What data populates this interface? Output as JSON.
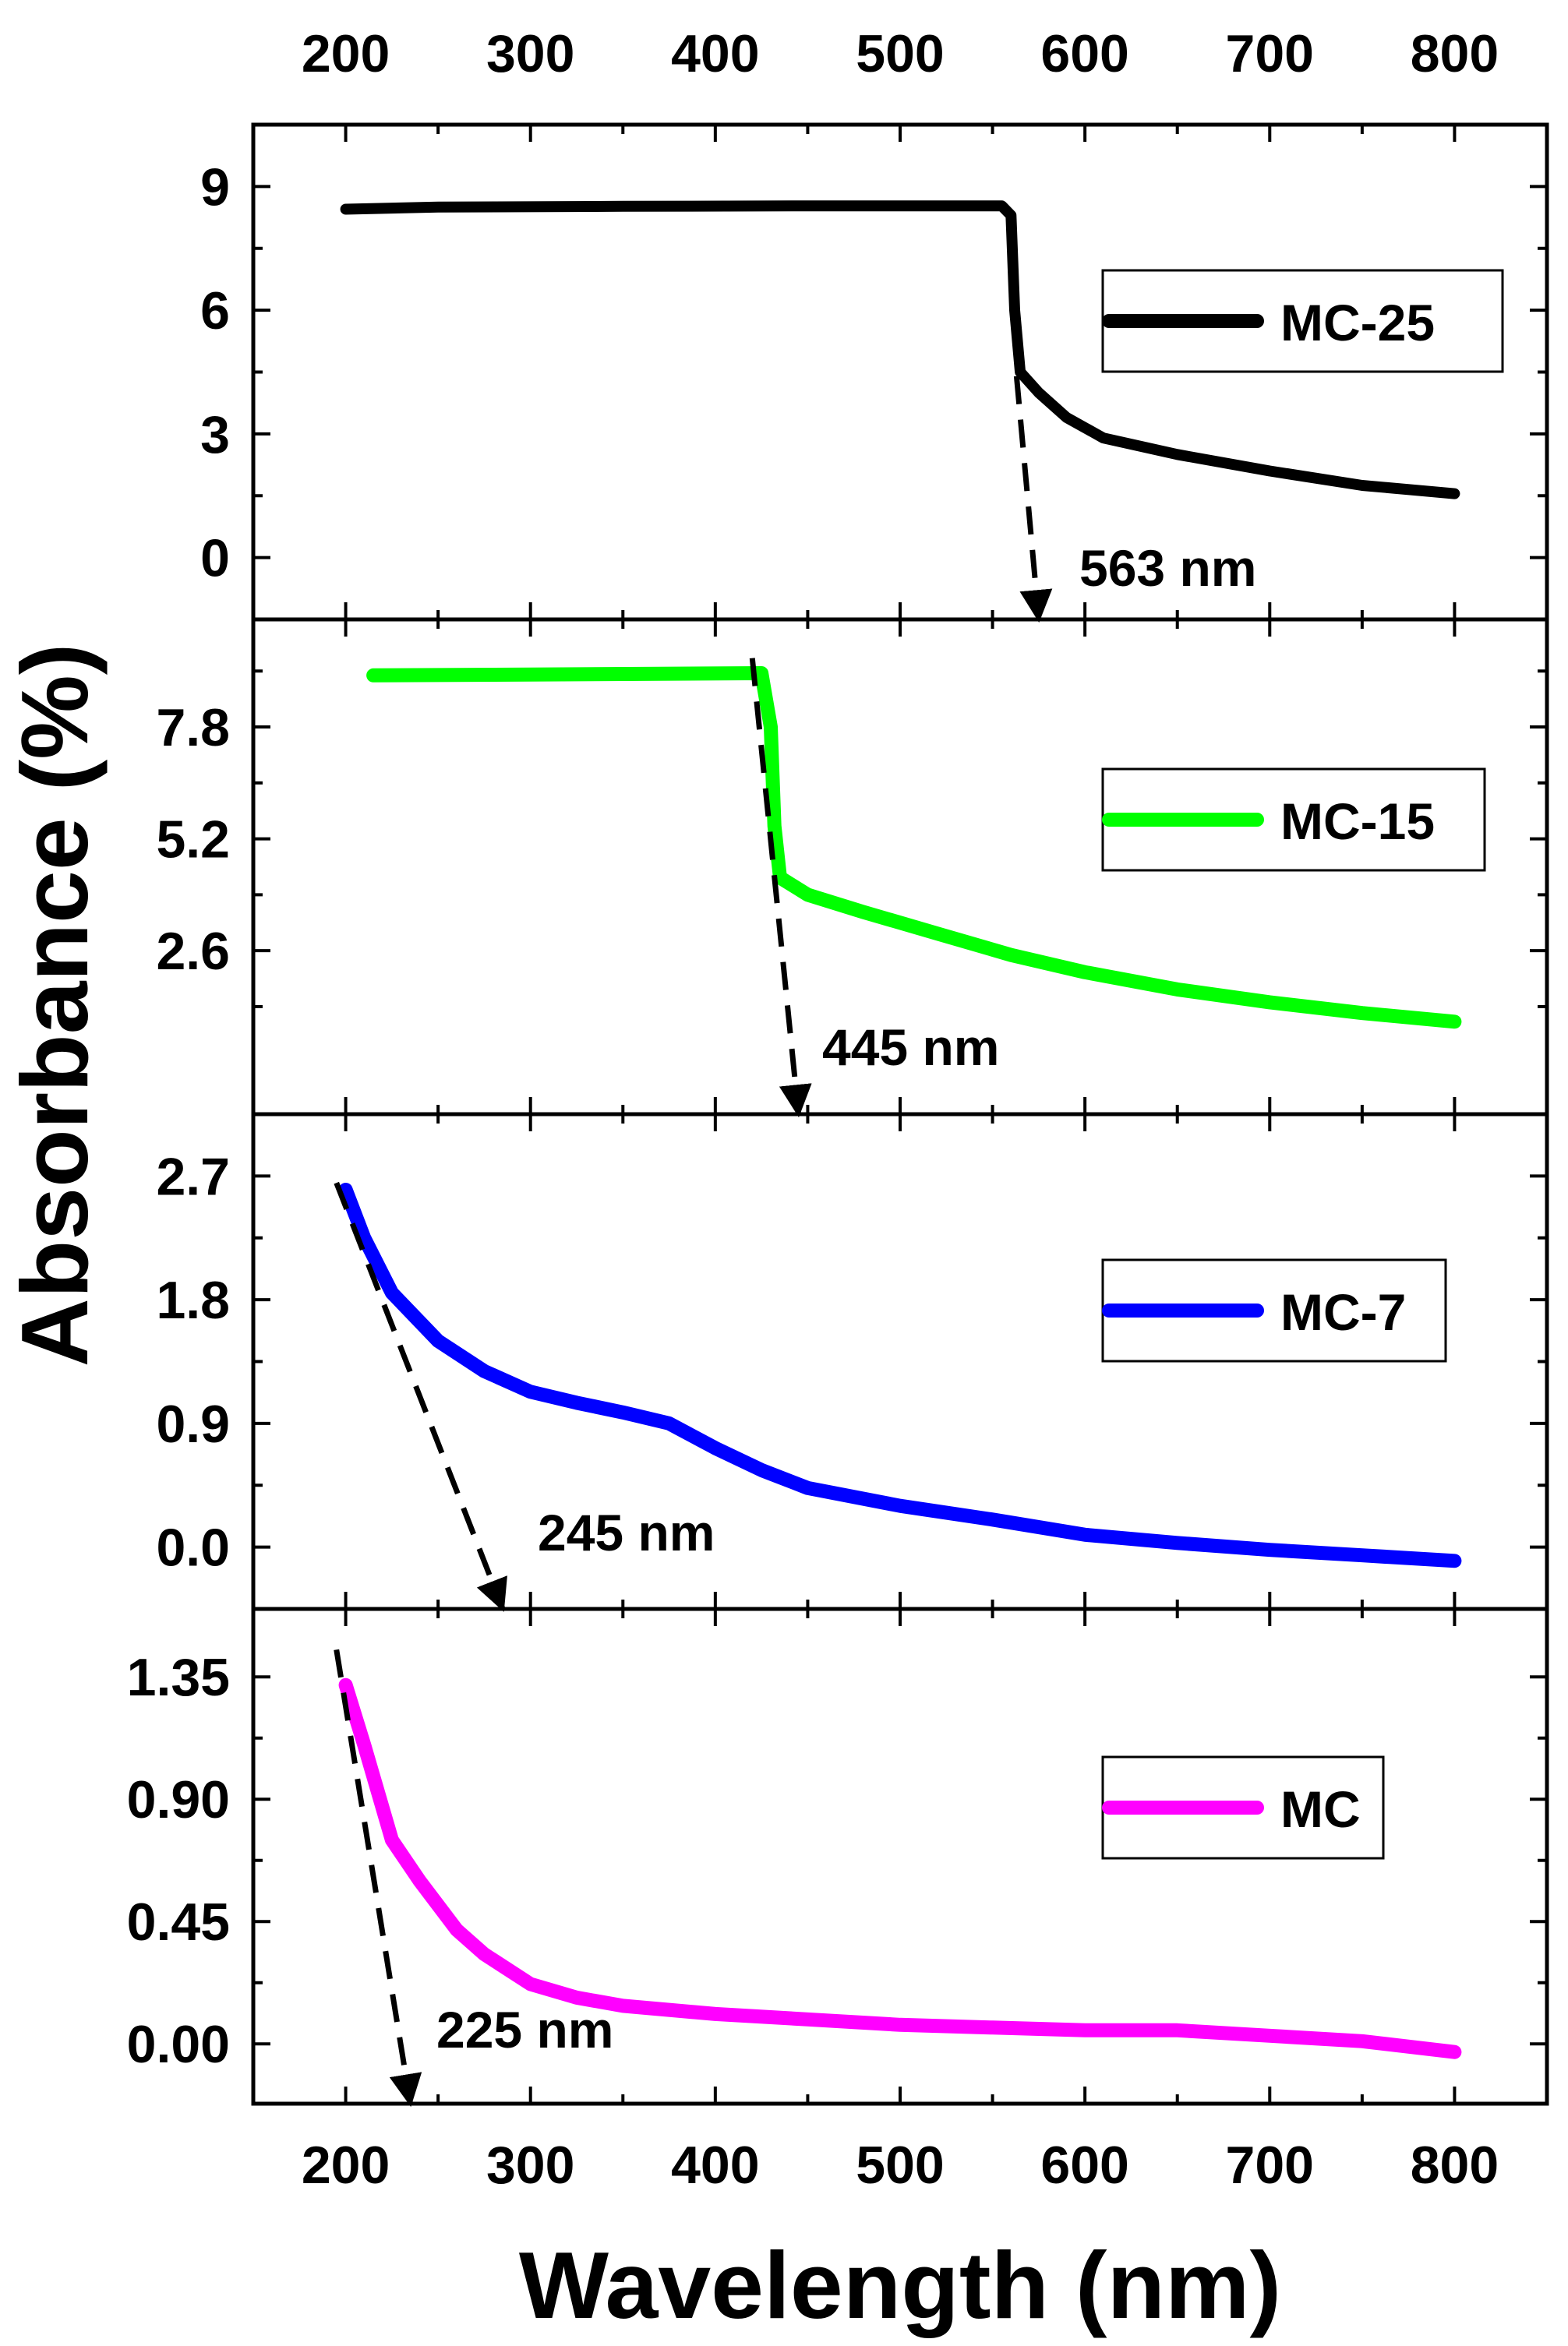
{
  "chart_data": {
    "type": "line",
    "layout": "stacked-panels",
    "xlabel": "Wavelength (nm)",
    "ylabel": "Absorbance (%)",
    "xlim": [
      150,
      850
    ],
    "xticks": [
      "200",
      "300",
      "400",
      "500",
      "600",
      "700",
      "800"
    ],
    "panels": [
      {
        "name": "MC-25",
        "color": "#000000",
        "ylim": [
          -1.5,
          10.5
        ],
        "yticks": [
          "0",
          "3",
          "6",
          "9"
        ],
        "ytick_values": [
          0,
          3,
          6,
          9
        ],
        "ytick_minor": [
          1.5,
          4.5,
          7.5
        ],
        "series": {
          "name": "MC-25",
          "points": [
            [
              200,
              8.45
            ],
            [
              250,
              8.5
            ],
            [
              350,
              8.52
            ],
            [
              450,
              8.53
            ],
            [
              555,
              8.53
            ],
            [
              560,
              8.3
            ],
            [
              562,
              6.0
            ],
            [
              565,
              4.5
            ],
            [
              575,
              4.0
            ],
            [
              590,
              3.4
            ],
            [
              610,
              2.9
            ],
            [
              650,
              2.5
            ],
            [
              700,
              2.1
            ],
            [
              750,
              1.75
            ],
            [
              800,
              1.55
            ]
          ]
        },
        "legend": "MC-25",
        "annotation": {
          "text": "563 nm",
          "arrow_from": [
            563,
            4.4
          ],
          "arrow_to": [
            575,
            -1.5
          ]
        }
      },
      {
        "name": "MC-15",
        "color": "#00ff00",
        "ylim": [
          -1.2,
          10.3
        ],
        "yticks": [
          "2.6",
          "5.2",
          "7.8"
        ],
        "ytick_values": [
          2.6,
          5.2,
          7.8
        ],
        "ytick_minor": [
          1.3,
          3.9,
          6.5,
          9.1
        ],
        "series": {
          "name": "MC-15",
          "points": [
            [
              215,
              9.0
            ],
            [
              300,
              9.02
            ],
            [
              425,
              9.05
            ],
            [
              430,
              7.8
            ],
            [
              432,
              5.5
            ],
            [
              435,
              4.3
            ],
            [
              450,
              3.9
            ],
            [
              480,
              3.5
            ],
            [
              520,
              3.0
            ],
            [
              560,
              2.5
            ],
            [
              600,
              2.1
            ],
            [
              650,
              1.7
            ],
            [
              700,
              1.4
            ],
            [
              750,
              1.15
            ],
            [
              800,
              0.95
            ]
          ]
        },
        "legend": "MC-15",
        "annotation": {
          "text": "445 nm",
          "arrow_from": [
            420,
            9.4
          ],
          "arrow_to": [
            445,
            -1.2
          ]
        }
      },
      {
        "name": "MC-7",
        "color": "#0000ff",
        "ylim": [
          -0.45,
          3.15
        ],
        "yticks": [
          "0.0",
          "0.9",
          "1.8",
          "2.7"
        ],
        "ytick_values": [
          0.0,
          0.9,
          1.8,
          2.7
        ],
        "ytick_minor": [
          0.45,
          1.35,
          2.25
        ],
        "series": {
          "name": "MC-7",
          "points": [
            [
              200,
              2.6
            ],
            [
              210,
              2.25
            ],
            [
              225,
              1.85
            ],
            [
              250,
              1.5
            ],
            [
              275,
              1.28
            ],
            [
              300,
              1.13
            ],
            [
              325,
              1.05
            ],
            [
              350,
              0.98
            ],
            [
              375,
              0.9
            ],
            [
              400,
              0.72
            ],
            [
              425,
              0.56
            ],
            [
              450,
              0.43
            ],
            [
              500,
              0.3
            ],
            [
              550,
              0.2
            ],
            [
              600,
              0.09
            ],
            [
              650,
              0.03
            ],
            [
              700,
              -0.02
            ],
            [
              750,
              -0.06
            ],
            [
              800,
              -0.1
            ]
          ]
        },
        "legend": "MC-7",
        "annotation": {
          "text": "245 nm",
          "arrow_from": [
            195,
            2.65
          ],
          "arrow_to": [
            285,
            -0.45
          ]
        }
      },
      {
        "name": "MC",
        "color": "#ff00ff",
        "ylim": [
          -0.22,
          1.6
        ],
        "yticks": [
          "0.00",
          "0.45",
          "0.90",
          "1.35"
        ],
        "ytick_values": [
          0.0,
          0.45,
          0.9,
          1.35
        ],
        "ytick_minor": [
          0.225,
          0.675,
          1.125
        ],
        "series": {
          "name": "MC",
          "points": [
            [
              200,
              1.32
            ],
            [
              210,
              1.1
            ],
            [
              225,
              0.75
            ],
            [
              240,
              0.6
            ],
            [
              260,
              0.42
            ],
            [
              275,
              0.33
            ],
            [
              300,
              0.22
            ],
            [
              325,
              0.17
            ],
            [
              350,
              0.14
            ],
            [
              400,
              0.11
            ],
            [
              450,
              0.09
            ],
            [
              500,
              0.07
            ],
            [
              550,
              0.06
            ],
            [
              600,
              0.05
            ],
            [
              650,
              0.05
            ],
            [
              700,
              0.03
            ],
            [
              750,
              0.01
            ],
            [
              800,
              -0.03
            ]
          ]
        },
        "legend": "MC",
        "annotation": {
          "text": "225 nm",
          "arrow_from": [
            195,
            1.45
          ],
          "arrow_to": [
            235,
            -0.22
          ]
        }
      }
    ]
  }
}
